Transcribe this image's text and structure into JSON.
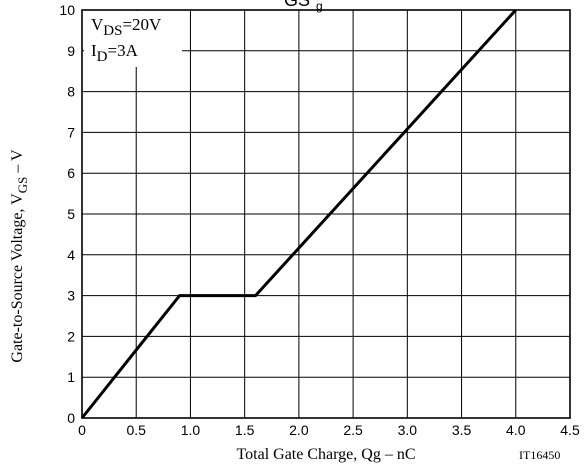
{
  "chart_data": {
    "type": "line",
    "title_fragment_main": "GS",
    "title_fragment_sub": "g",
    "xlabel": "Total Gate Charge, Qg  –  nC",
    "ylabel_main": "Gate-to-Source Voltage, V",
    "ylabel_sub": "GS",
    "ylabel_tail": "  –  V",
    "figure_code": "IT16450",
    "annotations": [
      {
        "main": "V",
        "sub": "DS",
        "tail": "=20V"
      },
      {
        "main": "I",
        "sub": "D",
        "tail": "=3A"
      }
    ],
    "xlim": [
      0,
      4.5
    ],
    "ylim": [
      0,
      10
    ],
    "x_ticks": [
      "0",
      "0.5",
      "1.0",
      "1.5",
      "2.0",
      "2.5",
      "3.0",
      "3.5",
      "4.0",
      "4.5"
    ],
    "y_ticks": [
      "0",
      "1",
      "2",
      "3",
      "4",
      "5",
      "6",
      "7",
      "8",
      "9",
      "10"
    ],
    "grid": true,
    "series": [
      {
        "x": [
          0,
          0.9,
          1.6,
          4.0
        ],
        "y": [
          0,
          3,
          3,
          10
        ]
      }
    ],
    "colors": {
      "line": "#000000",
      "grid": "#000000",
      "axis": "#000000"
    }
  }
}
